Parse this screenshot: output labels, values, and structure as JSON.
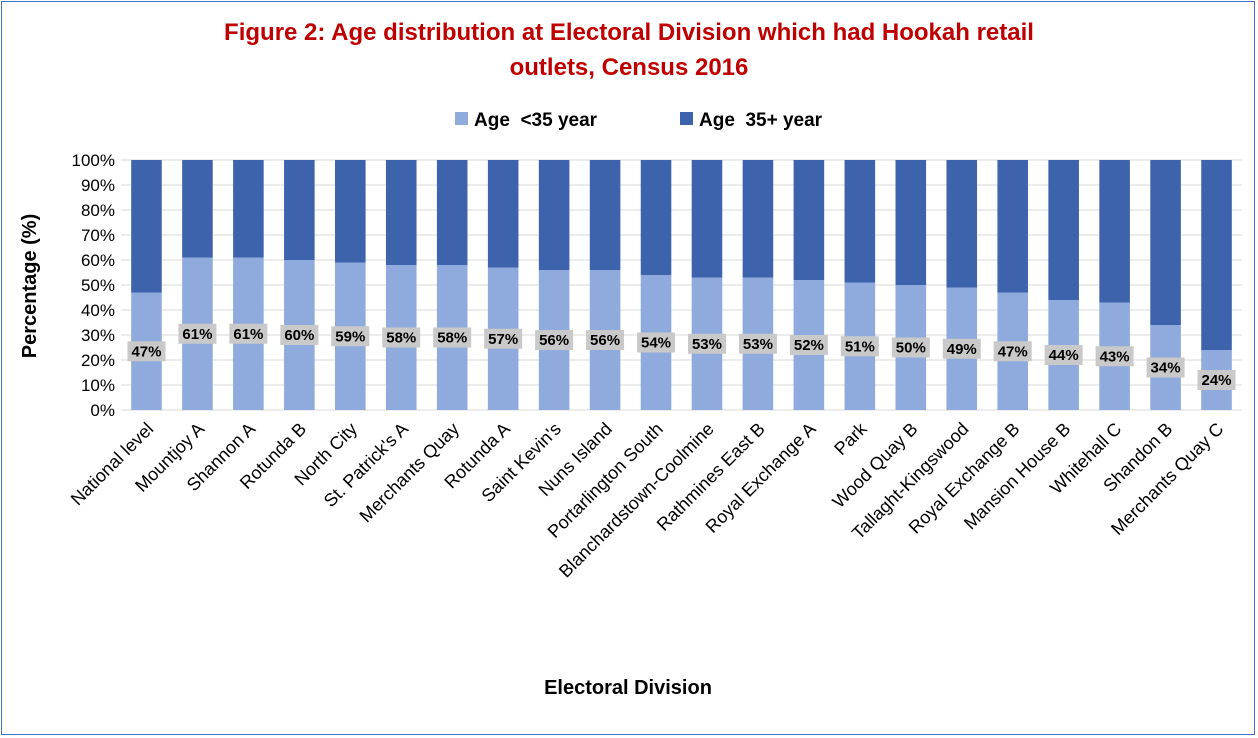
{
  "colors": {
    "under35": "#8faadc",
    "over35": "#3e63ad",
    "label_bg": "#c9c9c9",
    "title": "#c00000",
    "border": "#4472c4"
  },
  "chart_data": {
    "type": "bar",
    "stacked": "percent",
    "title_lines": [
      "Figure 2: Age distribution at Electoral Division which had Hookah retail",
      "outlets, Census 2016"
    ],
    "xlabel": "Electoral Division",
    "ylabel": "Percentage (%)",
    "ylim": [
      0,
      100
    ],
    "y_ticks": [
      "0%",
      "10%",
      "20%",
      "30%",
      "40%",
      "50%",
      "60%",
      "70%",
      "80%",
      "90%",
      "100%"
    ],
    "grid": true,
    "legend_position": "top",
    "categories": [
      "National level",
      "Mountjoy A",
      "Shannon A",
      "Rotunda B",
      "North City",
      "St. Patrick's A",
      "Merchants Quay",
      "Rotunda A",
      "Saint Kevin's",
      "Nuns Island",
      "Portarlington South",
      "Blanchardstown-Coolmine",
      "Rathmines East B",
      "Royal Exchange A",
      "Park",
      "Wood Quay B",
      "Tallaght-Kingswood",
      "Royal Exchange B",
      "Mansion House B",
      "Whitehall C",
      "Shandon B",
      "Merchants Quay C"
    ],
    "series": [
      {
        "name": "Age  <35 year",
        "values": [
          47,
          61,
          61,
          60,
          59,
          58,
          58,
          57,
          56,
          56,
          54,
          53,
          53,
          52,
          51,
          50,
          49,
          47,
          44,
          43,
          34,
          24
        ],
        "labels": [
          "47%",
          "61%",
          "61%",
          "60%",
          "59%",
          "58%",
          "58%",
          "57%",
          "56%",
          "56%",
          "54%",
          "53%",
          "53%",
          "52%",
          "51%",
          "50%",
          "49%",
          "47%",
          "44%",
          "43%",
          "34%",
          "24%"
        ]
      },
      {
        "name": "Age  35+ year",
        "values": [
          53,
          39,
          39,
          40,
          41,
          42,
          42,
          43,
          44,
          44,
          46,
          47,
          47,
          48,
          49,
          50,
          51,
          53,
          56,
          57,
          66,
          76
        ]
      }
    ]
  }
}
